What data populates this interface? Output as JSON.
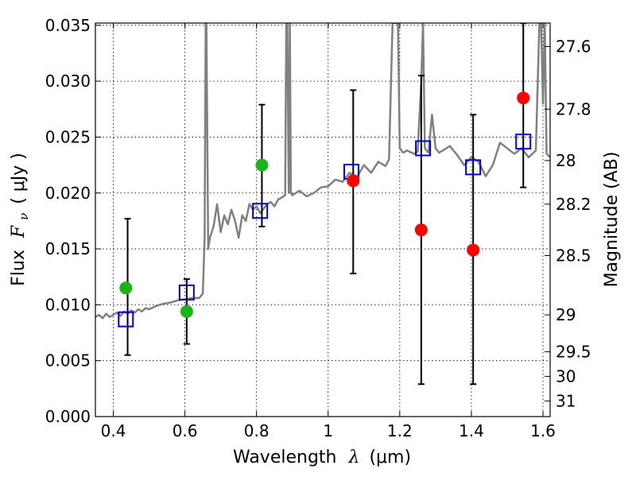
{
  "chart_data": {
    "type": "scatter",
    "title": "",
    "xlabel": "Wavelength",
    "xlabel_math": "λ",
    "xlabel_unit": "(μm)",
    "ylabel": "Flux",
    "ylabel_math": "F",
    "ylabel_sub": "ν",
    "ylabel_unit": "( μJy )",
    "y2label": "Magnitude (AB)",
    "xlim": [
      0.35,
      1.62
    ],
    "ylim": [
      0.0,
      0.0352
    ],
    "grid": true,
    "x_ticks": [
      0.4,
      0.6,
      0.8,
      1.0,
      1.2,
      1.4,
      1.6
    ],
    "x_tick_labels": [
      "0.4",
      "0.6",
      "0.8",
      "1",
      "1.2",
      "1.4",
      "1.6"
    ],
    "y_ticks": [
      0.0,
      0.005,
      0.01,
      0.015,
      0.02,
      0.025,
      0.03,
      0.035
    ],
    "y_tick_labels": [
      "0.000",
      "0.005",
      "0.010",
      "0.015",
      "0.020",
      "0.025",
      "0.030",
      "0.035"
    ],
    "y2_ticks": [
      {
        "label": "27.6",
        "flux": 0.0331
      },
      {
        "label": "27.8",
        "flux": 0.0275
      },
      {
        "label": "28",
        "flux": 0.0229
      },
      {
        "label": "28.2",
        "flux": 0.019
      },
      {
        "label": "28.5",
        "flux": 0.0144
      },
      {
        "label": "29",
        "flux": 0.0091
      },
      {
        "label": "29.5",
        "flux": 0.0058
      },
      {
        "label": "30",
        "flux": 0.0036
      },
      {
        "label": "31",
        "flux": 0.0014
      }
    ],
    "series": [
      {
        "style": "line",
        "color": "#808080",
        "x": [
          0.35,
          0.36,
          0.37,
          0.38,
          0.39,
          0.4,
          0.41,
          0.42,
          0.43,
          0.44,
          0.45,
          0.46,
          0.47,
          0.48,
          0.49,
          0.5,
          0.52,
          0.54,
          0.56,
          0.58,
          0.6,
          0.62,
          0.64,
          0.65,
          0.655,
          0.658,
          0.66,
          0.665,
          0.67,
          0.68,
          0.69,
          0.7,
          0.71,
          0.72,
          0.73,
          0.74,
          0.75,
          0.76,
          0.77,
          0.78,
          0.79,
          0.8,
          0.81,
          0.82,
          0.83,
          0.84,
          0.85,
          0.86,
          0.87,
          0.88,
          0.883,
          0.886,
          0.89,
          0.893,
          0.896,
          0.9,
          0.92,
          0.94,
          0.96,
          0.98,
          1.0,
          1.02,
          1.04,
          1.06,
          1.08,
          1.1,
          1.12,
          1.14,
          1.16,
          1.17,
          1.18,
          1.185,
          1.195,
          1.2,
          1.21,
          1.22,
          1.24,
          1.25,
          1.26,
          1.265,
          1.27,
          1.28,
          1.29,
          1.3,
          1.31,
          1.32,
          1.34,
          1.36,
          1.38,
          1.4,
          1.42,
          1.44,
          1.46,
          1.48,
          1.5,
          1.52,
          1.54,
          1.56,
          1.58,
          1.59,
          1.595,
          1.6,
          1.605,
          1.61,
          1.62
        ],
        "y": [
          0.0089,
          0.0091,
          0.0088,
          0.0092,
          0.0089,
          0.0091,
          0.0093,
          0.009,
          0.0094,
          0.0092,
          0.0095,
          0.0093,
          0.0096,
          0.0094,
          0.0097,
          0.0096,
          0.0099,
          0.0101,
          0.0102,
          0.0104,
          0.0105,
          0.0106,
          0.0106,
          0.011,
          0.016,
          0.0352,
          0.0352,
          0.015,
          0.016,
          0.017,
          0.019,
          0.0165,
          0.018,
          0.0172,
          0.0185,
          0.0175,
          0.016,
          0.018,
          0.0175,
          0.019,
          0.0185,
          0.0188,
          0.0182,
          0.0186,
          0.019,
          0.0192,
          0.0188,
          0.0194,
          0.0196,
          0.0198,
          0.0352,
          0.0352,
          0.02,
          0.0352,
          0.02,
          0.0198,
          0.0202,
          0.0197,
          0.02,
          0.0205,
          0.0206,
          0.0212,
          0.021,
          0.0218,
          0.0214,
          0.0225,
          0.0218,
          0.0228,
          0.0224,
          0.023,
          0.0352,
          0.0352,
          0.0352,
          0.024,
          0.0236,
          0.0238,
          0.0235,
          0.0237,
          0.03,
          0.0352,
          0.024,
          0.0236,
          0.027,
          0.024,
          0.0236,
          0.0238,
          0.0242,
          0.0234,
          0.0225,
          0.0232,
          0.0228,
          0.0215,
          0.0225,
          0.0245,
          0.024,
          0.0235,
          0.024,
          0.0232,
          0.0238,
          0.0352,
          0.0352,
          0.028,
          0.0352,
          0.0235,
          0.0232
        ]
      },
      {
        "style": "open-square",
        "color": "#0000cc",
        "x": [
          0.435,
          0.605,
          0.81,
          1.065,
          1.265,
          1.405,
          1.545
        ],
        "y": [
          0.0087,
          0.0111,
          0.0184,
          0.0219,
          0.024,
          0.0223,
          0.0246
        ]
      },
      {
        "style": "filled-circle",
        "color": "#19b419",
        "x": [
          0.435,
          0.605,
          0.815
        ],
        "y": [
          0.0115,
          0.0094,
          0.0225
        ]
      },
      {
        "style": "filled-circle",
        "color": "#ff0000",
        "x": [
          1.07,
          1.26,
          1.405,
          1.545
        ],
        "y": [
          0.0211,
          0.0167,
          0.0149,
          0.0285
        ]
      }
    ],
    "error_bars": [
      {
        "x": 0.44,
        "low": 0.0055,
        "high": 0.0177
      },
      {
        "x": 0.605,
        "low": 0.0065,
        "high": 0.0123
      },
      {
        "x": 0.815,
        "low": 0.017,
        "high": 0.0279
      },
      {
        "x": 1.07,
        "low": 0.0128,
        "high": 0.0292
      },
      {
        "x": 1.26,
        "low": 0.0029,
        "high": 0.0305
      },
      {
        "x": 1.405,
        "low": 0.0029,
        "high": 0.027
      },
      {
        "x": 1.545,
        "low": 0.0205,
        "high": 0.0352
      }
    ]
  }
}
